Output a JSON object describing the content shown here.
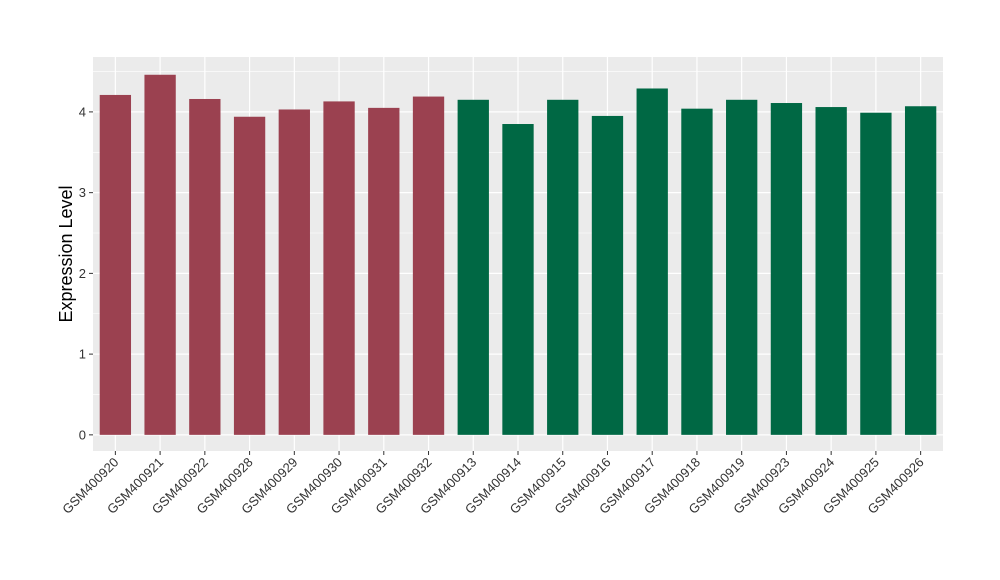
{
  "chart_data": {
    "type": "bar",
    "title": "",
    "xlabel": "",
    "ylabel": "Expression Level",
    "ylim": [
      -0.2,
      4.68
    ],
    "yticks": [
      0,
      1,
      2,
      3,
      4
    ],
    "grid": true,
    "legend": "none",
    "categories": [
      "GSM400920",
      "GSM400921",
      "GSM400922",
      "GSM400928",
      "GSM400929",
      "GSM400930",
      "GSM400931",
      "GSM400932",
      "GSM400913",
      "GSM400914",
      "GSM400915",
      "GSM400916",
      "GSM400917",
      "GSM400918",
      "GSM400919",
      "GSM400923",
      "GSM400924",
      "GSM400925",
      "GSM400926"
    ],
    "values": [
      4.21,
      4.46,
      4.16,
      3.94,
      4.03,
      4.13,
      4.05,
      4.19,
      4.15,
      3.85,
      4.15,
      3.95,
      4.29,
      4.04,
      4.15,
      4.11,
      4.06,
      3.99,
      4.07
    ],
    "groups": [
      "a",
      "a",
      "a",
      "a",
      "a",
      "a",
      "a",
      "a",
      "b",
      "b",
      "b",
      "b",
      "b",
      "b",
      "b",
      "b",
      "b",
      "b",
      "b"
    ],
    "colors": {
      "a": "#9b4150",
      "b": "#006844",
      "panel": "#ebebeb",
      "grid": "#ffffff"
    }
  }
}
